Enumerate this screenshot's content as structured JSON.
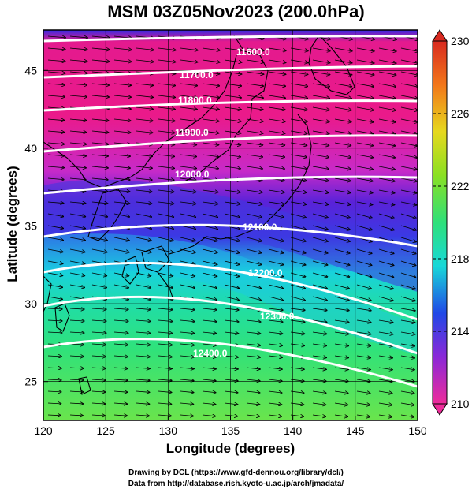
{
  "title": "MSM 03Z05Nov2023 (200.0hPa)",
  "xlabel": "Longitude (degrees)",
  "ylabel": "Latitude  (degrees)",
  "credit_line1": "Drawing by DCL (https://www.gfd-dennou.org/library/dcl/)",
  "credit_line2": "Data from http://database.rish.kyoto-u.ac.jp/arch/jmadata/",
  "map": {
    "lon_range": [
      120,
      150
    ],
    "lat_range": [
      22.5,
      47.6
    ],
    "x_ticks": [
      "120",
      "125",
      "130",
      "135",
      "140",
      "145",
      "150"
    ],
    "y_ticks": [
      "25",
      "30",
      "35",
      "40",
      "45"
    ],
    "grid": true,
    "shaded_field_colors": [
      "#e8148c",
      "#b42ad0",
      "#4a22d8",
      "#1a64f0",
      "#18d4d8",
      "#2ee27a",
      "#46e24a",
      "#7fe42a"
    ],
    "wind_vectors": "westerly",
    "contour_labels": [
      "11600.0",
      "11700.0",
      "11800.0",
      "11900.0",
      "12000.0",
      "12100.0",
      "12200.0",
      "12300.0",
      "12400.0"
    ],
    "contour_levels": [
      11600,
      11700,
      11800,
      11900,
      12000,
      12100,
      12200,
      12300,
      12400
    ]
  },
  "colorbar": {
    "tick_labels": [
      "230",
      "226",
      "222",
      "218",
      "214",
      "210"
    ],
    "min": 210,
    "max": 230
  }
}
